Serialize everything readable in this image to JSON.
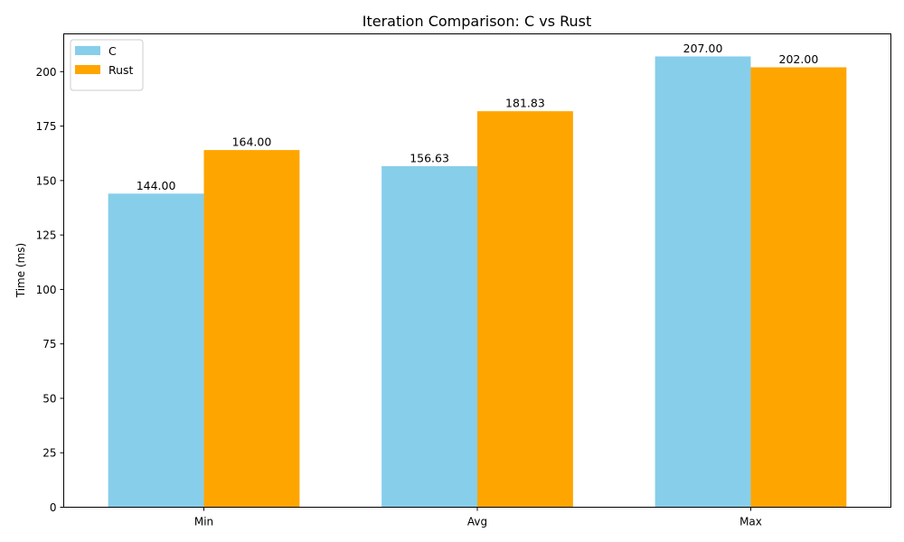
{
  "chart_data": {
    "type": "bar",
    "title": "Iteration Comparison: C vs Rust",
    "xlabel": "",
    "ylabel": "Time (ms)",
    "categories": [
      "Min",
      "Avg",
      "Max"
    ],
    "series": [
      {
        "name": "C",
        "values": [
          144.0,
          156.63,
          207.0
        ],
        "labels": [
          "144.00",
          "156.63",
          "207.00"
        ],
        "color": "#87ceeb"
      },
      {
        "name": "Rust",
        "values": [
          164.0,
          181.83,
          202.0
        ],
        "labels": [
          "164.00",
          "181.83",
          "202.00"
        ],
        "color": "#ffa500"
      }
    ],
    "ylim": [
      0,
      217.35
    ],
    "yticks": [
      0,
      25,
      50,
      75,
      100,
      125,
      150,
      175,
      200
    ],
    "grid": false,
    "legend": "top-left"
  }
}
